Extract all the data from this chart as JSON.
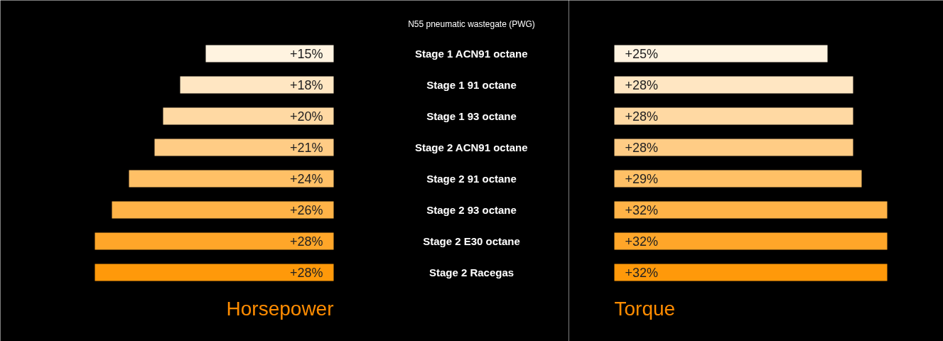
{
  "chart_data": [
    {
      "type": "bar",
      "orientation": "horizontal",
      "title": "N55 pneumatic wastegate (PWG)",
      "xlabel": "Horsepower",
      "categories": [
        "Stage 1 ACN91 octane",
        "Stage 1 91 octane",
        "Stage 1 93 octane",
        "Stage 2 ACN91 octane",
        "Stage 2 91 octane",
        "Stage 2 93 octane",
        "Stage 2 E30 octane",
        "Stage 2 Racegas"
      ],
      "values": [
        15,
        18,
        20,
        21,
        24,
        26,
        28,
        28
      ],
      "value_labels": [
        "+15%",
        "+18%",
        "+20%",
        "+21%",
        "+24%",
        "+26%",
        "+28%",
        "+28%"
      ],
      "colors": [
        "#fff3e0",
        "#ffe6c2",
        "#ffd9a3",
        "#ffcc85",
        "#ffc066",
        "#ffb347",
        "#ffa629",
        "#ff990a"
      ]
    },
    {
      "type": "bar",
      "orientation": "horizontal",
      "xlabel": "Torque",
      "categories": [
        null,
        null,
        null,
        null,
        null,
        null,
        null,
        null
      ],
      "values": [
        25,
        28,
        28,
        28,
        29,
        32,
        32,
        32
      ],
      "value_labels": [
        "+25%",
        "+28%",
        "+28%",
        "+28%",
        "+29%",
        "+32%",
        "+32%",
        "+32%"
      ],
      "colors": [
        "#fff3e0",
        "#ffe6c2",
        "#ffd9a3",
        "#ffcc85",
        "#ffc066",
        "#ffb347",
        "#ffa629",
        "#ff990a"
      ]
    }
  ]
}
